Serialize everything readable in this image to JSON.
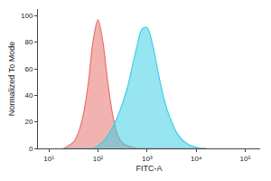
{
  "chart_data": {
    "type": "area",
    "x_label": "FITC-A",
    "y_label": "Normalized To Mode",
    "log": "x",
    "grid": false,
    "x": [
      20,
      25,
      32,
      40,
      50,
      63,
      79,
      100,
      126,
      158,
      200,
      251,
      316,
      398,
      501,
      631,
      794,
      1000,
      1259,
      1585,
      1995,
      2512,
      3162,
      3981,
      5012,
      6310,
      7943,
      10000,
      12589,
      15849
    ],
    "series": [
      {
        "color": "#e8736f",
        "values": [
          0,
          2,
          5,
          12,
          25,
          48,
          80,
          97,
          80,
          50,
          25,
          10,
          4,
          2,
          1,
          0,
          0,
          0,
          0,
          0,
          0,
          0,
          0,
          0,
          0,
          0,
          0,
          0,
          0,
          0
        ]
      },
      {
        "color": "#3fd0e6",
        "values": [
          0,
          0,
          0,
          0,
          0,
          0,
          0,
          2,
          5,
          10,
          16,
          24,
          34,
          46,
          62,
          78,
          90,
          91,
          80,
          62,
          44,
          30,
          20,
          12,
          7,
          4,
          2,
          1,
          0,
          0
        ]
      }
    ],
    "xlim": [
      6,
      200000
    ],
    "xticks": [
      {
        "value": 10,
        "label": "10¹"
      },
      {
        "value": 100,
        "label": "10²"
      },
      {
        "value": 1000,
        "label": "10³"
      },
      {
        "value": 10000,
        "label": "10⁴"
      },
      {
        "value": 100000,
        "label": "10⁵"
      }
    ],
    "ylim": [
      0,
      105
    ],
    "yticks": [
      0,
      20,
      40,
      60,
      80,
      100
    ]
  }
}
